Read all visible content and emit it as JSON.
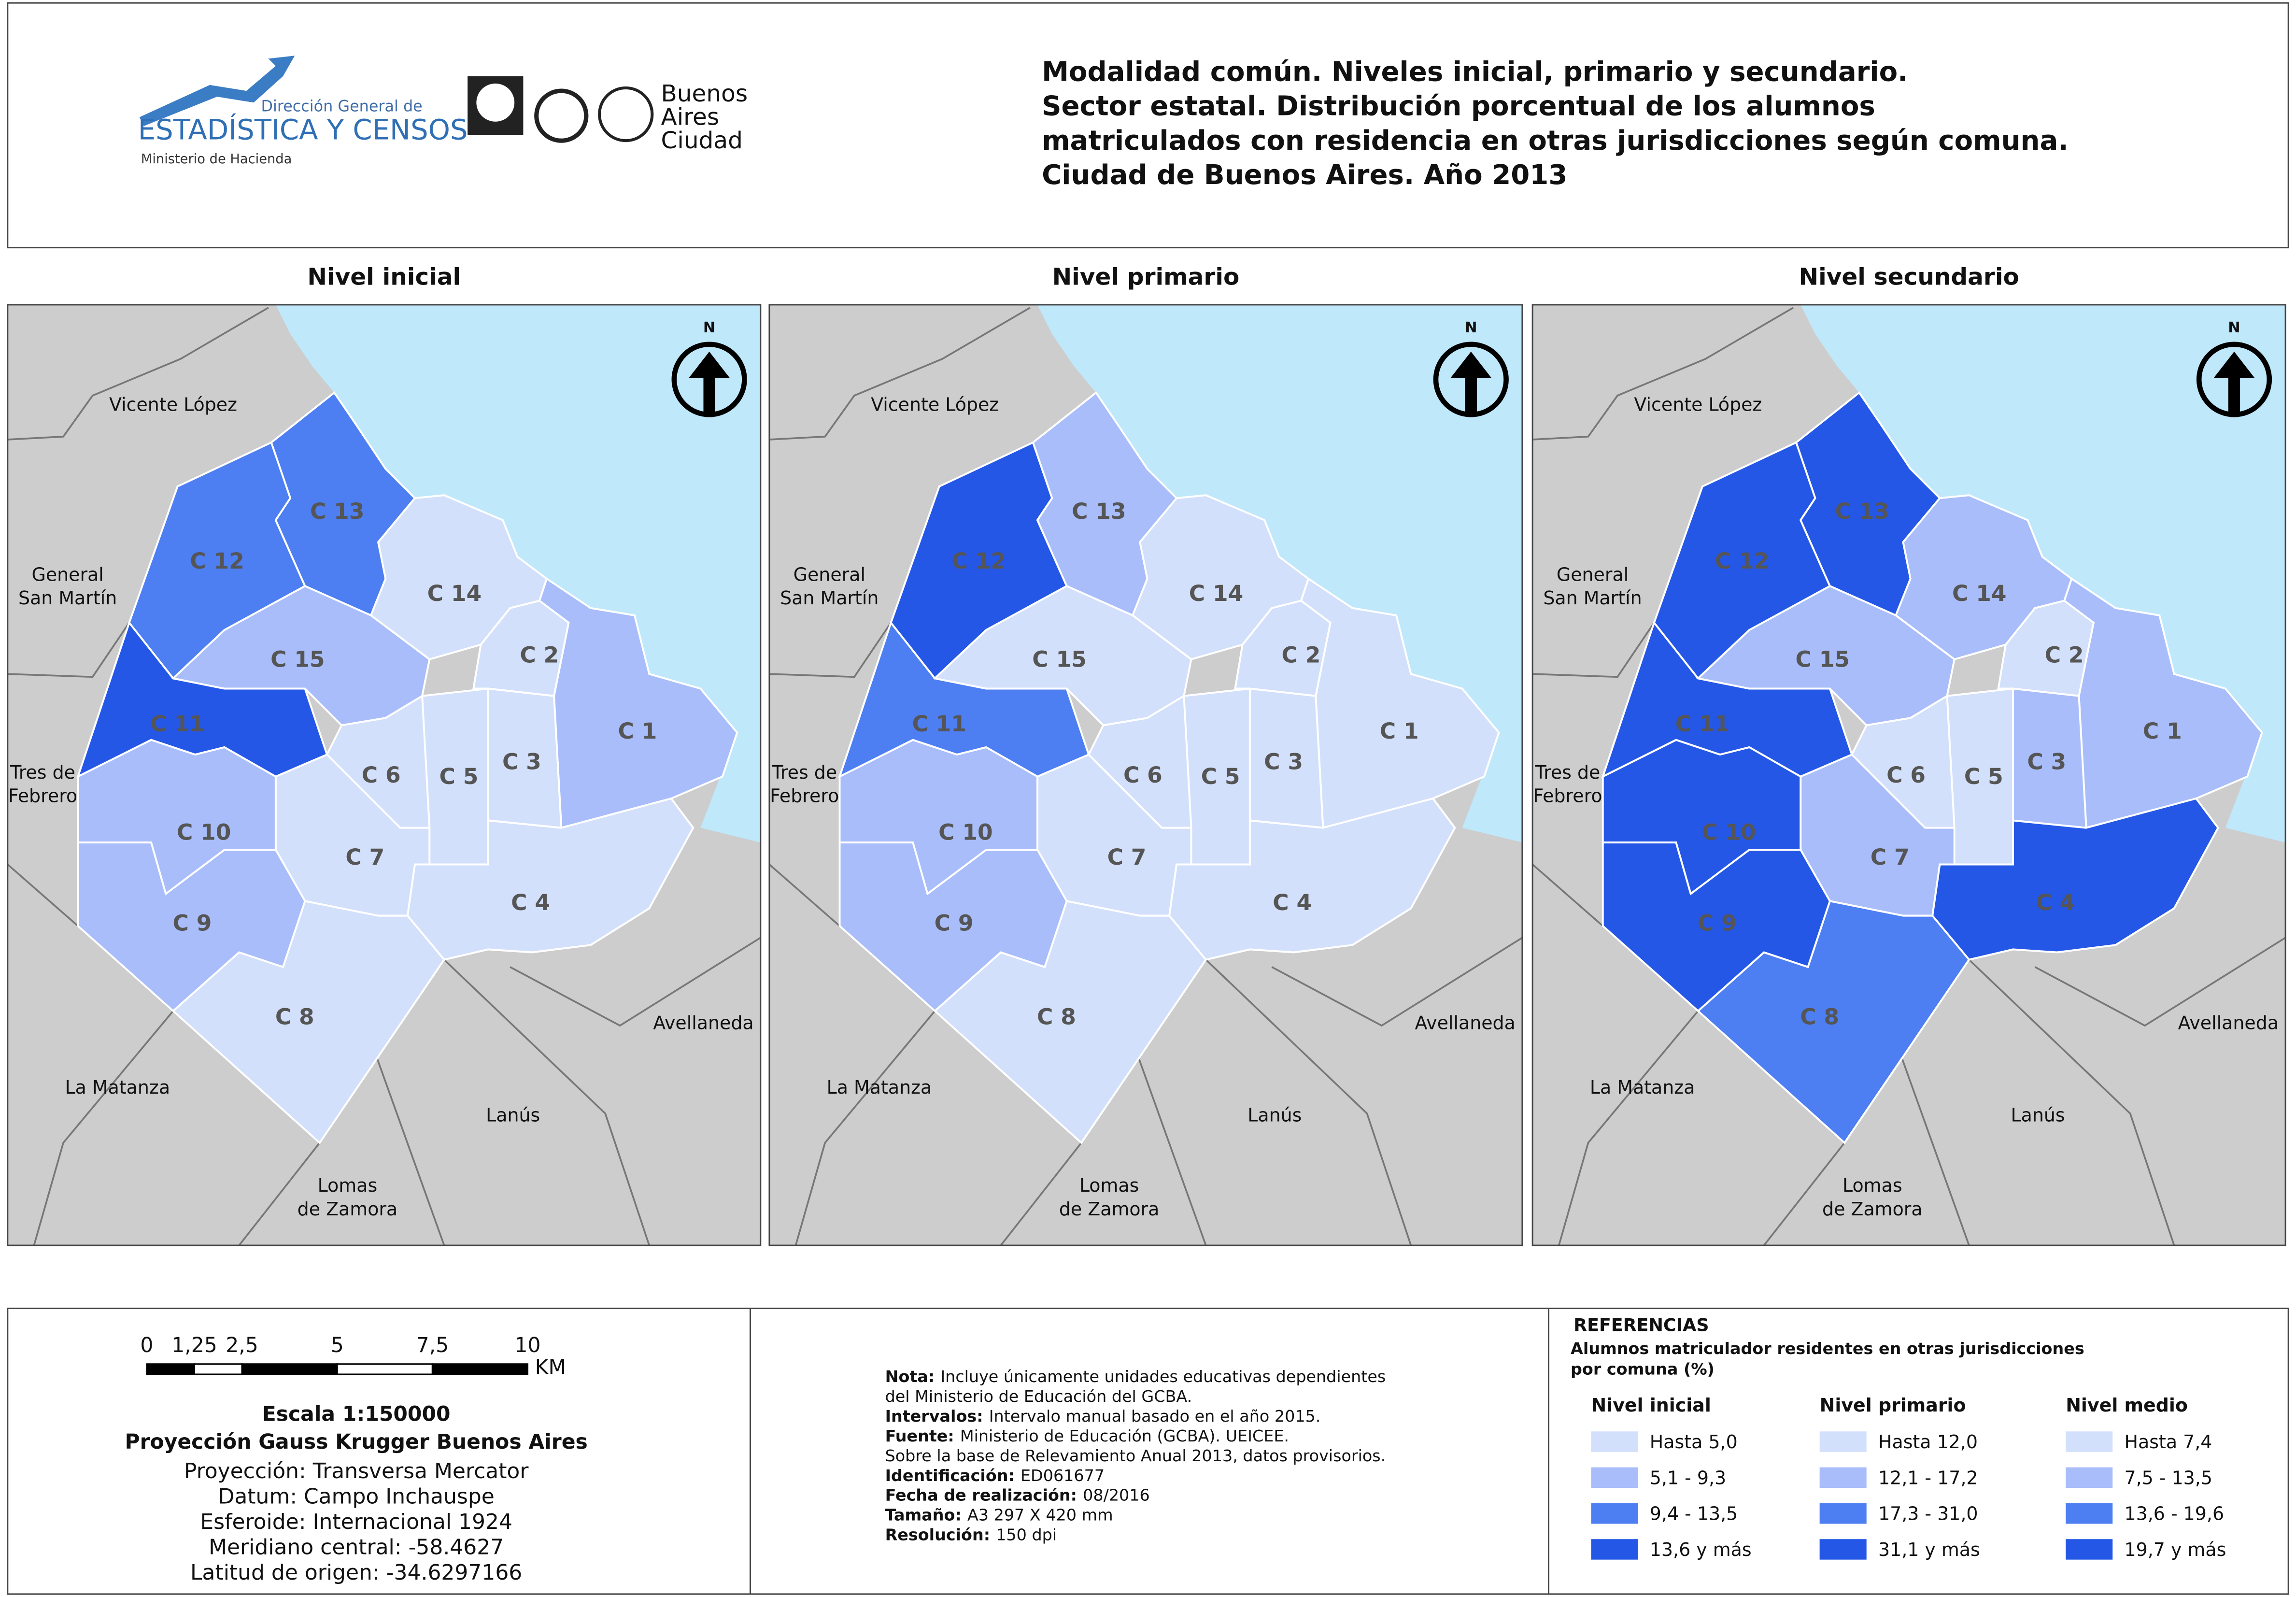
{
  "header": {
    "title_lines": [
      "Modalidad común. Niveles inicial, primario y secundario.",
      "Sector estatal. Distribución porcentual de los alumnos",
      "matriculados con residencia en otras jurisdicciones según comuna.",
      "Ciudad de Buenos Aires. Año 2013"
    ],
    "logo_lines": [
      "Dirección General de",
      "ESTADÍSTICA Y CENSOS",
      "Ministerio de Hacienda"
    ],
    "city_lines": [
      "Buenos",
      "Aires",
      "Ciudad"
    ]
  },
  "north": "N",
  "neighbors": [
    [
      "Vicente López"
    ],
    [
      "General",
      "San Martín"
    ],
    [
      "Tres de",
      "Febrero"
    ],
    [
      "La Matanza"
    ],
    [
      "Lomas",
      "de Zamora"
    ],
    [
      "Lanús"
    ],
    [
      "Avellaneda"
    ]
  ],
  "maps": [
    {
      "title": "Nivel inicial",
      "comunas": [
        {
          "label": "C 1",
          "color": "#a8bdfa"
        },
        {
          "label": "C 2",
          "color": "#d3e0fb"
        },
        {
          "label": "C 3",
          "color": "#d3e0fb"
        },
        {
          "label": "C 4",
          "color": "#d3e0fb"
        },
        {
          "label": "C 5",
          "color": "#d3e0fb"
        },
        {
          "label": "C 6",
          "color": "#d3e0fb"
        },
        {
          "label": "C 7",
          "color": "#d3e0fb"
        },
        {
          "label": "C 8",
          "color": "#d3e0fb"
        },
        {
          "label": "C 9",
          "color": "#a8bdfa"
        },
        {
          "label": "C 10",
          "color": "#a8bdfa"
        },
        {
          "label": "C 11",
          "color": "#2557e6"
        },
        {
          "label": "C 12",
          "color": "#4d7ef2"
        },
        {
          "label": "C 13",
          "color": "#4d7ef2"
        },
        {
          "label": "C 14",
          "color": "#d3e0fb"
        },
        {
          "label": "C 15",
          "color": "#a8bdfa"
        }
      ]
    },
    {
      "title": "Nivel primario",
      "comunas": [
        {
          "label": "C 1",
          "color": "#d3e0fb"
        },
        {
          "label": "C 2",
          "color": "#d3e0fb"
        },
        {
          "label": "C 3",
          "color": "#d3e0fb"
        },
        {
          "label": "C 4",
          "color": "#d3e0fb"
        },
        {
          "label": "C 5",
          "color": "#d3e0fb"
        },
        {
          "label": "C 6",
          "color": "#d3e0fb"
        },
        {
          "label": "C 7",
          "color": "#d3e0fb"
        },
        {
          "label": "C 8",
          "color": "#d3e0fb"
        },
        {
          "label": "C 9",
          "color": "#a8bdfa"
        },
        {
          "label": "C 10",
          "color": "#a8bdfa"
        },
        {
          "label": "C 11",
          "color": "#4d7ef2"
        },
        {
          "label": "C 12",
          "color": "#2557e6"
        },
        {
          "label": "C 13",
          "color": "#a8bdfa"
        },
        {
          "label": "C 14",
          "color": "#d3e0fb"
        },
        {
          "label": "C 15",
          "color": "#d3e0fb"
        }
      ]
    },
    {
      "title": "Nivel secundario",
      "comunas": [
        {
          "label": "C 1",
          "color": "#a8bdfa"
        },
        {
          "label": "C 2",
          "color": "#d3e0fb"
        },
        {
          "label": "C 3",
          "color": "#a8bdfa"
        },
        {
          "label": "C 4",
          "color": "#2557e6"
        },
        {
          "label": "C 5",
          "color": "#d3e0fb"
        },
        {
          "label": "C 6",
          "color": "#d3e0fb"
        },
        {
          "label": "C 7",
          "color": "#a8bdfa"
        },
        {
          "label": "C 8",
          "color": "#4d7ef2"
        },
        {
          "label": "C 9",
          "color": "#2557e6"
        },
        {
          "label": "C 10",
          "color": "#2557e6"
        },
        {
          "label": "C 11",
          "color": "#2557e6"
        },
        {
          "label": "C 12",
          "color": "#2557e6"
        },
        {
          "label": "C 13",
          "color": "#2557e6"
        },
        {
          "label": "C 14",
          "color": "#a8bdfa"
        },
        {
          "label": "C 15",
          "color": "#a8bdfa"
        }
      ]
    }
  ],
  "scale": {
    "ticks": [
      0,
      {
        "value": 1.25,
        "label": "1,25"
      },
      {
        "value": 2.5,
        "label": "2,5"
      },
      5,
      {
        "value": 7.5,
        "label": "7,5"
      },
      10
    ],
    "unit": "KM",
    "lines": [
      "Escala 1:150000",
      "Proyección Gauss Krugger Buenos Aires",
      "Proyección: Transversa Mercator",
      "Datum: Campo Inchauspe",
      "Esferoide: Internacional 1924",
      "Meridiano central: -58.4627",
      "Latitud de origen: -34.6297166"
    ]
  },
  "notes": [
    {
      "label": "Nota:",
      "text": "Incluye únicamente unidades educativas dependientes"
    },
    {
      "text": "del Ministerio de Educación del GCBA."
    },
    {
      "label": "Intervalos:",
      "text": "Intervalo manual basado en el año 2015."
    },
    {
      "label": "Fuente:",
      "text": "Ministerio de Educación (GCBA). UEICEE."
    },
    {
      "text": "Sobre la base de Relevamiento Anual 2013, datos provisorios."
    },
    {
      "label": "Identificación:",
      "text": "ED061677"
    },
    {
      "label": "Fecha de realización:",
      "text": "08/2016"
    },
    {
      "label": "Tamaño:",
      "text": "A3 297 X 420 mm"
    },
    {
      "label": "Resolución:",
      "text": "150 dpi"
    }
  ],
  "legend": {
    "title": "REFERENCIAS",
    "subtitle_lines": [
      "Alumnos matriculador residentes en otras jurisdicciones",
      "por comuna (%)"
    ],
    "colors": [
      "#d3e0fb",
      "#a8bdfa",
      "#4d7ef2",
      "#2557e6"
    ],
    "groups": [
      {
        "title": "Nivel inicial",
        "items": [
          "Hasta 5,0",
          "5,1 - 9,3",
          "9,4 - 13,5",
          "13,6 y más"
        ]
      },
      {
        "title": "Nivel primario",
        "items": [
          "Hasta 12,0",
          "12,1 - 17,2",
          "17,3 - 31,0",
          "31,1 y más"
        ]
      },
      {
        "title": "Nivel medio",
        "items": [
          "Hasta 7,4",
          "7,5 - 13,5",
          "13,6 - 19,6",
          "19,7 y más"
        ]
      }
    ]
  }
}
